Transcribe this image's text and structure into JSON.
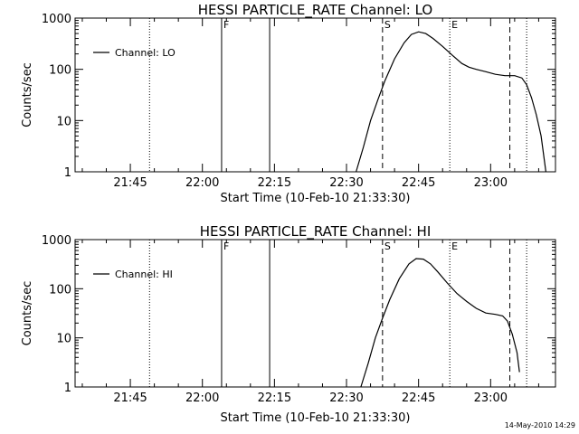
{
  "footer_timestamp": "14-May-2010 14:29",
  "chart_data": [
    {
      "type": "line",
      "title": "HESSI PARTICLE_RATE Channel: LO",
      "xlabel": "Start Time (10-Feb-10 21:33:30)",
      "ylabel": "Counts/sec",
      "y_scale": "log",
      "ylim": [
        1,
        1000
      ],
      "xlim": [
        "21:33:30",
        "23:13:30"
      ],
      "x_ticks": [
        "21:45",
        "22:00",
        "22:15",
        "22:30",
        "22:45",
        "23:00"
      ],
      "y_ticks": [
        "1",
        "10",
        "100",
        "1000"
      ],
      "legend": {
        "placement": "top-left",
        "entries": [
          "Channel: LO"
        ]
      },
      "series": [
        {
          "name": "Channel: LO",
          "points": [
            [
              "22:32:00",
              1
            ],
            [
              "22:33:30",
              3
            ],
            [
              "22:35:00",
              10
            ],
            [
              "22:36:30",
              25
            ],
            [
              "22:38:00",
              60
            ],
            [
              "22:40:00",
              160
            ],
            [
              "22:42:00",
              330
            ],
            [
              "22:43:30",
              480
            ],
            [
              "22:45:00",
              540
            ],
            [
              "22:46:30",
              500
            ],
            [
              "22:48:00",
              400
            ],
            [
              "22:50:00",
              280
            ],
            [
              "22:52:00",
              190
            ],
            [
              "22:54:00",
              130
            ],
            [
              "22:55:30",
              110
            ],
            [
              "22:57:00",
              100
            ],
            [
              "22:59:00",
              90
            ],
            [
              "23:01:00",
              80
            ],
            [
              "23:03:00",
              75
            ],
            [
              "23:05:00",
              75
            ],
            [
              "23:06:30",
              68
            ],
            [
              "23:07:30",
              50
            ],
            [
              "23:08:30",
              28
            ],
            [
              "23:09:30",
              13
            ],
            [
              "23:10:30",
              5
            ],
            [
              "23:11:30",
              1
            ]
          ]
        }
      ],
      "markers": [
        {
          "time": "21:49:00",
          "style": "dotted",
          "label": ""
        },
        {
          "time": "22:04:00",
          "style": "solid",
          "label": "F"
        },
        {
          "time": "22:14:00",
          "style": "solid",
          "label": ""
        },
        {
          "time": "22:37:30",
          "style": "dashed",
          "label": "S"
        },
        {
          "time": "22:51:30",
          "style": "dotted",
          "label": "E"
        },
        {
          "time": "23:04:00",
          "style": "dashed",
          "label": ""
        },
        {
          "time": "23:07:30",
          "style": "dotted",
          "label": ""
        }
      ]
    },
    {
      "type": "line",
      "title": "HESSI PARTICLE_RATE Channel: HI",
      "xlabel": "Start Time (10-Feb-10 21:33:30)",
      "ylabel": "Counts/sec",
      "y_scale": "log",
      "ylim": [
        1,
        1000
      ],
      "xlim": [
        "21:33:30",
        "23:13:30"
      ],
      "x_ticks": [
        "21:45",
        "22:00",
        "22:15",
        "22:30",
        "22:45",
        "23:00"
      ],
      "y_ticks": [
        "1",
        "10",
        "100",
        "1000"
      ],
      "legend": {
        "placement": "top-left",
        "entries": [
          "Channel: HI"
        ]
      },
      "series": [
        {
          "name": "Channel: HI",
          "points": [
            [
              "22:33:00",
              1
            ],
            [
              "22:34:30",
              3
            ],
            [
              "22:36:00",
              10
            ],
            [
              "22:37:30",
              25
            ],
            [
              "22:39:00",
              60
            ],
            [
              "22:41:00",
              160
            ],
            [
              "22:43:00",
              320
            ],
            [
              "22:44:30",
              410
            ],
            [
              "22:46:00",
              400
            ],
            [
              "22:47:30",
              320
            ],
            [
              "22:49:00",
              220
            ],
            [
              "22:51:00",
              130
            ],
            [
              "22:53:00",
              80
            ],
            [
              "22:55:00",
              55
            ],
            [
              "22:57:00",
              40
            ],
            [
              "22:59:00",
              32
            ],
            [
              "23:01:00",
              30
            ],
            [
              "23:02:30",
              28
            ],
            [
              "23:03:30",
              22
            ],
            [
              "23:04:30",
              12
            ],
            [
              "23:05:30",
              5
            ],
            [
              "23:06:00",
              2
            ]
          ]
        }
      ],
      "markers": [
        {
          "time": "21:49:00",
          "style": "dotted",
          "label": ""
        },
        {
          "time": "22:04:00",
          "style": "solid",
          "label": "F"
        },
        {
          "time": "22:14:00",
          "style": "solid",
          "label": ""
        },
        {
          "time": "22:37:30",
          "style": "dashed",
          "label": "S"
        },
        {
          "time": "22:51:30",
          "style": "dotted",
          "label": "E"
        },
        {
          "time": "23:04:00",
          "style": "dashed",
          "label": ""
        },
        {
          "time": "23:07:30",
          "style": "dotted",
          "label": ""
        }
      ]
    }
  ]
}
